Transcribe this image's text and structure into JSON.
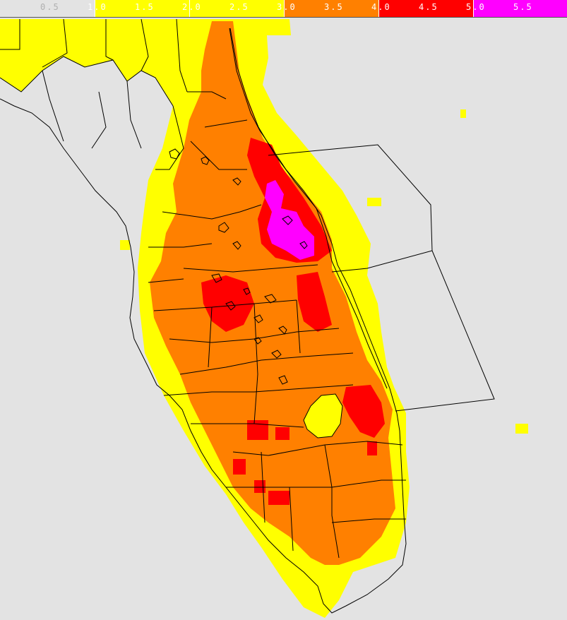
{
  "legend": {
    "bins": [
      {
        "from": 0.0,
        "to": 1.0,
        "color": "#e3e3e3"
      },
      {
        "from": 1.0,
        "to": 3.0,
        "color": "#ffff00"
      },
      {
        "from": 3.0,
        "to": 4.0,
        "color": "#ff8000"
      },
      {
        "from": 4.0,
        "to": 5.0,
        "color": "#ff0000"
      },
      {
        "from": 5.0,
        "to": 6.0,
        "color": "#ff00ff"
      }
    ],
    "ticks": [
      "0.5",
      "1.0",
      "1.5",
      "2.0",
      "2.5",
      "3.0",
      "3.5",
      "4.0",
      "4.5",
      "5.0",
      "5.5"
    ]
  },
  "colors": {
    "background": "#e3e3e3",
    "level_1_3": "#ffff00",
    "level_3_4": "#ff8000",
    "level_4_5": "#ff0000",
    "level_5_plus": "#ff00ff",
    "boundaries": "#000000"
  }
}
